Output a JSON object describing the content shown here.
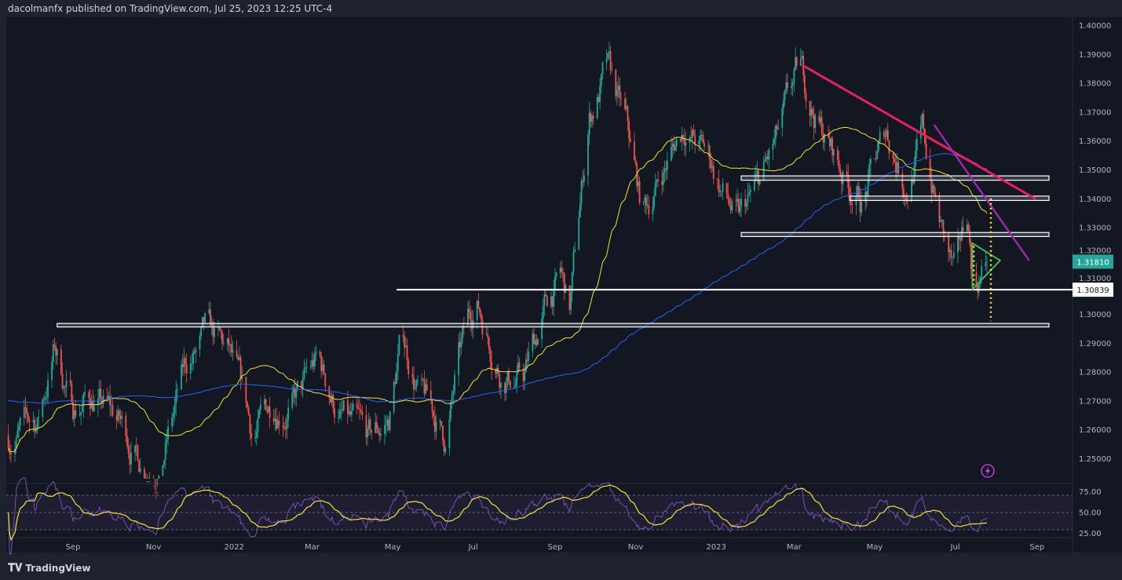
{
  "header": {
    "publisher_line": "dacolmanfx published on TradingView.com, Jul 25, 2023 12:25 UTC-4"
  },
  "footer": {
    "logo_text": "TradingView",
    "logo_icon": "tradingview-logo"
  },
  "colors": {
    "up": "#26a69a",
    "down": "#ef5350",
    "ma_fast": "#f2e33a",
    "ma_slow": "#2962ff",
    "rsi": "#7e57c2",
    "rsi_ma": "#f2e33a",
    "trendline": "#e91e63",
    "wedge": "#9c27b0",
    "triangle": "#4caf50",
    "projection": "#ffeb3b",
    "last_price": "#26a69a"
  },
  "chart_data": [
    {
      "type": "candlestick",
      "ylim": [
        1.245,
        1.4
      ],
      "y_ticks": [
        "1.40000",
        "1.39000",
        "1.38000",
        "1.37000",
        "1.36000",
        "1.35000",
        "1.34000",
        "1.33000",
        "1.32000",
        "1.31000",
        "1.30000",
        "1.29000",
        "1.28000",
        "1.27000",
        "1.26000",
        "1.25000"
      ],
      "x_ticks": [
        {
          "label": "Sep",
          "date": "2021-09-01"
        },
        {
          "label": "Nov",
          "date": "2021-11-01"
        },
        {
          "label": "2022",
          "date": "2022-01-01"
        },
        {
          "label": "Mar",
          "date": "2022-03-01"
        },
        {
          "label": "May",
          "date": "2022-05-01"
        },
        {
          "label": "Jul",
          "date": "2022-07-01"
        },
        {
          "label": "Sep",
          "date": "2022-09-01"
        },
        {
          "label": "Nov",
          "date": "2022-11-01"
        },
        {
          "label": "2023",
          "date": "2023-01-01"
        },
        {
          "label": "Mar",
          "date": "2023-03-01"
        },
        {
          "label": "May",
          "date": "2023-05-01"
        },
        {
          "label": "Jul",
          "date": "2023-07-01"
        },
        {
          "label": "Sep",
          "date": "2023-09-01"
        }
      ],
      "price_path": [
        [
          "2021-07-14",
          1.258
        ],
        [
          "2021-08-05",
          1.262
        ],
        [
          "2021-08-18",
          1.288
        ],
        [
          "2021-09-01",
          1.268
        ],
        [
          "2021-09-15",
          1.272
        ],
        [
          "2021-10-05",
          1.262
        ],
        [
          "2021-10-22",
          1.25
        ],
        [
          "2021-11-05",
          1.248
        ],
        [
          "2021-11-25",
          1.28
        ],
        [
          "2021-12-10",
          1.29
        ],
        [
          "2021-12-28",
          1.283
        ],
        [
          "2022-01-15",
          1.256
        ],
        [
          "2022-02-01",
          1.27
        ],
        [
          "2022-02-20",
          1.272
        ],
        [
          "2022-03-05",
          1.282
        ],
        [
          "2022-03-22",
          1.265
        ],
        [
          "2022-04-12",
          1.252
        ],
        [
          "2022-04-28",
          1.262
        ],
        [
          "2022-05-08",
          1.292
        ],
        [
          "2022-05-22",
          1.272
        ],
        [
          "2022-06-10",
          1.256
        ],
        [
          "2022-06-20",
          1.282
        ],
        [
          "2022-07-03",
          1.305
        ],
        [
          "2022-07-22",
          1.283
        ],
        [
          "2022-08-08",
          1.278
        ],
        [
          "2022-08-25",
          1.302
        ],
        [
          "2022-09-05",
          1.312
        ],
        [
          "2022-09-12",
          1.3
        ],
        [
          "2022-09-27",
          1.368
        ],
        [
          "2022-10-10",
          1.384
        ],
        [
          "2022-10-25",
          1.362
        ],
        [
          "2022-11-06",
          1.333
        ],
        [
          "2022-11-22",
          1.35
        ],
        [
          "2022-12-08",
          1.366
        ],
        [
          "2022-12-28",
          1.352
        ],
        [
          "2023-01-18",
          1.33
        ],
        [
          "2023-02-02",
          1.342
        ],
        [
          "2023-02-18",
          1.36
        ],
        [
          "2023-03-05",
          1.381
        ],
        [
          "2023-03-20",
          1.366
        ],
        [
          "2023-04-05",
          1.35
        ],
        [
          "2023-04-22",
          1.34
        ],
        [
          "2023-05-10",
          1.362
        ],
        [
          "2023-05-25",
          1.346
        ],
        [
          "2023-06-06",
          1.362
        ],
        [
          "2023-06-20",
          1.33
        ],
        [
          "2023-07-01",
          1.31
        ],
        [
          "2023-07-10",
          1.332
        ],
        [
          "2023-07-15",
          1.31
        ],
        [
          "2023-07-25",
          1.3181
        ]
      ],
      "indicators": [
        "SMA 50",
        "SMA 200"
      ],
      "last_price": "1.31810",
      "level_label": "1.30839",
      "annotations": {
        "zones": [
          {
            "from": "2021-08-20",
            "to": "2023-09-10",
            "low": 1.2955,
            "high": 1.2967
          },
          {
            "from": "2023-01-20",
            "to": "2023-09-10",
            "low": 1.3268,
            "high": 1.3282
          },
          {
            "from": "2023-04-12",
            "to": "2023-09-10",
            "low": 1.3393,
            "high": 1.3408
          },
          {
            "from": "2023-01-20",
            "to": "2023-09-10",
            "low": 1.3463,
            "high": 1.3478
          }
        ],
        "level": {
          "from": "2022-05-04",
          "to": "2023-09-10",
          "price": 1.30839
        },
        "trendline": [
          [
            "2023-03-07",
            1.3862
          ],
          [
            "2023-08-31",
            1.3398
          ]
        ],
        "wedge_line": [
          [
            "2023-06-15",
            1.3655
          ],
          [
            "2023-08-26",
            1.3185
          ]
        ],
        "triangle": [
          [
            "2023-07-14",
            1.3245
          ],
          [
            "2023-08-04",
            1.3185
          ],
          [
            "2023-07-14",
            1.3085
          ]
        ],
        "projections": [
          [
            [
              "2023-07-28",
              1.34
            ],
            [
              "2023-07-28",
              1.2975
            ]
          ],
          [
            [
              "2023-07-15",
              1.3235
            ],
            [
              "2023-07-15",
              1.31
            ]
          ]
        ]
      }
    },
    {
      "type": "line",
      "ylim": [
        20,
        85
      ],
      "y_ticks": [
        "75.00",
        "50.00",
        "25.00"
      ]
    }
  ]
}
